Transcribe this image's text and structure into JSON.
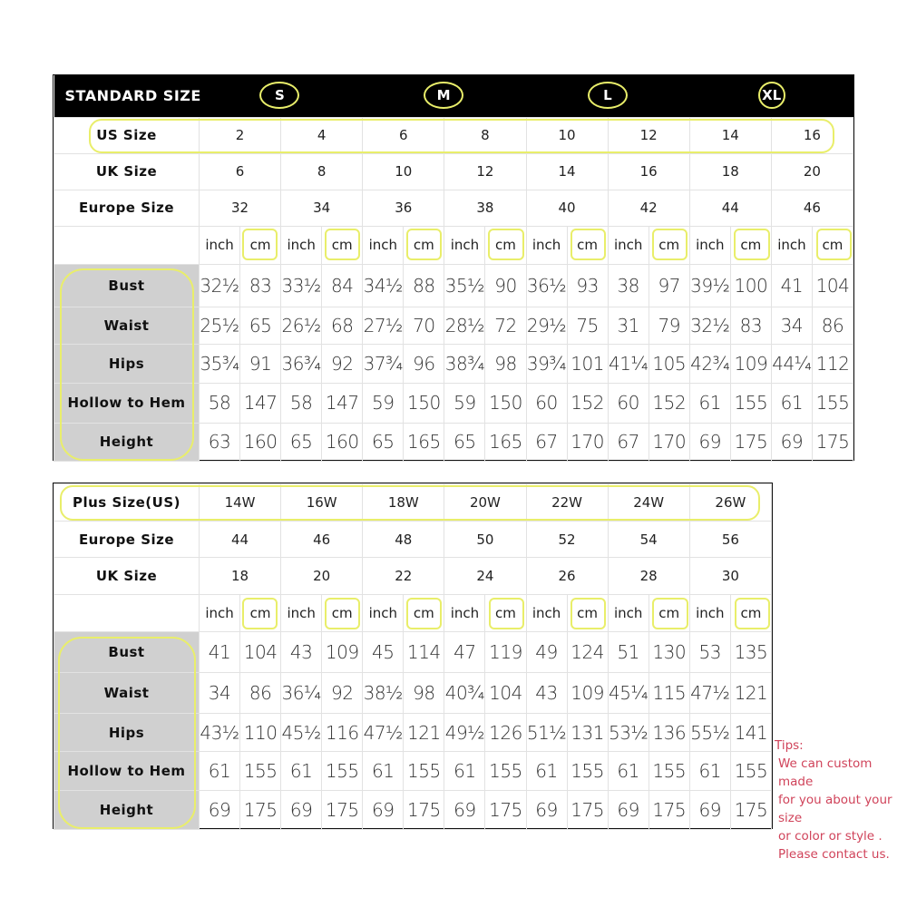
{
  "standard": {
    "title": "STANDARD SIZE",
    "size_groups": [
      "S",
      "M",
      "L",
      "XL"
    ],
    "size_rows": [
      {
        "label": "US Size",
        "values": [
          "2",
          "4",
          "6",
          "8",
          "10",
          "12",
          "14",
          "16"
        ]
      },
      {
        "label": "UK Size",
        "values": [
          "6",
          "8",
          "10",
          "12",
          "14",
          "16",
          "18",
          "20"
        ]
      },
      {
        "label": "Europe Size",
        "values": [
          "32",
          "34",
          "36",
          "38",
          "40",
          "42",
          "44",
          "46"
        ]
      }
    ],
    "units": [
      "inch",
      "cm"
    ],
    "measure_rows": [
      {
        "label": "Bust",
        "values": [
          "32½",
          "83",
          "33½",
          "84",
          "34½",
          "88",
          "35½",
          "90",
          "36½",
          "93",
          "38",
          "97",
          "39½",
          "100",
          "41",
          "104"
        ]
      },
      {
        "label": "Waist",
        "values": [
          "25½",
          "65",
          "26½",
          "68",
          "27½",
          "70",
          "28½",
          "72",
          "29½",
          "75",
          "31",
          "79",
          "32½",
          "83",
          "34",
          "86"
        ]
      },
      {
        "label": "Hips",
        "values": [
          "35¾",
          "91",
          "36¾",
          "92",
          "37¾",
          "96",
          "38¾",
          "98",
          "39¾",
          "101",
          "41¼",
          "105",
          "42¾",
          "109",
          "44¼",
          "112"
        ]
      },
      {
        "label": "Hollow to Hem",
        "values": [
          "58",
          "147",
          "58",
          "147",
          "59",
          "150",
          "59",
          "150",
          "60",
          "152",
          "60",
          "152",
          "61",
          "155",
          "61",
          "155"
        ]
      },
      {
        "label": "Height",
        "values": [
          "63",
          "160",
          "65",
          "160",
          "65",
          "165",
          "65",
          "165",
          "67",
          "170",
          "67",
          "170",
          "69",
          "175",
          "69",
          "175"
        ]
      }
    ]
  },
  "plus": {
    "size_rows": [
      {
        "label": "Plus Size(US)",
        "values": [
          "14W",
          "16W",
          "18W",
          "20W",
          "22W",
          "24W",
          "26W"
        ]
      },
      {
        "label": "Europe Size",
        "values": [
          "44",
          "46",
          "48",
          "50",
          "52",
          "54",
          "56"
        ]
      },
      {
        "label": "UK Size",
        "values": [
          "18",
          "20",
          "22",
          "24",
          "26",
          "28",
          "30"
        ]
      }
    ],
    "units": [
      "inch",
      "cm"
    ],
    "measure_rows": [
      {
        "label": "Bust",
        "values": [
          "41",
          "104",
          "43",
          "109",
          "45",
          "114",
          "47",
          "119",
          "49",
          "124",
          "51",
          "130",
          "53",
          "135"
        ]
      },
      {
        "label": "Waist",
        "values": [
          "34",
          "86",
          "36¼",
          "92",
          "38½",
          "98",
          "40¾",
          "104",
          "43",
          "109",
          "45¼",
          "115",
          "47½",
          "121"
        ]
      },
      {
        "label": "Hips",
        "values": [
          "43½",
          "110",
          "45½",
          "116",
          "47½",
          "121",
          "49½",
          "126",
          "51½",
          "131",
          "53½",
          "136",
          "55½",
          "141"
        ]
      },
      {
        "label": "Hollow to Hem",
        "values": [
          "61",
          "155",
          "61",
          "155",
          "61",
          "155",
          "61",
          "155",
          "61",
          "155",
          "61",
          "155",
          "61",
          "155"
        ]
      },
      {
        "label": "Height",
        "values": [
          "69",
          "175",
          "69",
          "175",
          "69",
          "175",
          "69",
          "175",
          "69",
          "175",
          "69",
          "175",
          "69",
          "175"
        ]
      }
    ]
  },
  "tips": {
    "title": "Tips:",
    "lines": [
      "We can custom made",
      "for you about your size",
      "or color or style .",
      "Please contact us."
    ]
  },
  "colors": {
    "highlight": "#e9ee6a",
    "header_bg": "#000000",
    "label_bg": "#d0d0d0",
    "tips": "#d0435a"
  }
}
